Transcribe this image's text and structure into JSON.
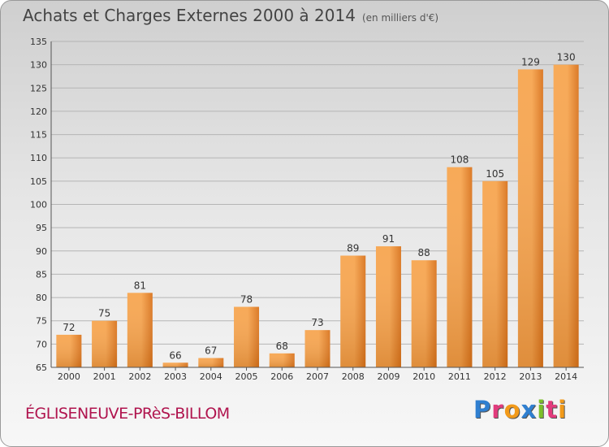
{
  "header": {
    "title": "Achats et Charges Externes 2000 à 2014",
    "subtitle": "(en milliers d'€)"
  },
  "footer": {
    "commune": "ÉGLISENEUVE-PRèS-BILLOM",
    "logo_letters": [
      {
        "ch": "P",
        "color": "#2f7fd0"
      },
      {
        "ch": "r",
        "color": "#e23b7c"
      },
      {
        "ch": "o",
        "color": "#f29a1a"
      },
      {
        "ch": "x",
        "color": "#2f7fd0"
      },
      {
        "ch": "i",
        "color": "#7cbf2a"
      },
      {
        "ch": "t",
        "color": "#e23b7c"
      },
      {
        "ch": "i",
        "color": "#f29a1a"
      }
    ]
  },
  "chart_data": {
    "type": "bar",
    "categories": [
      "2000",
      "2001",
      "2002",
      "2003",
      "2004",
      "2005",
      "2006",
      "2007",
      "2008",
      "2009",
      "2010",
      "2011",
      "2012",
      "2013",
      "2014"
    ],
    "values": [
      72,
      75,
      81,
      66,
      67,
      78,
      68,
      73,
      89,
      91,
      88,
      108,
      105,
      129,
      130
    ],
    "ylim": [
      65,
      135
    ],
    "yticks": [
      65,
      70,
      75,
      80,
      85,
      90,
      95,
      100,
      105,
      110,
      115,
      120,
      125,
      130,
      135
    ],
    "grid": true,
    "bar_color_light": "#f7a54f",
    "bar_color_dark": "#d9731c"
  }
}
